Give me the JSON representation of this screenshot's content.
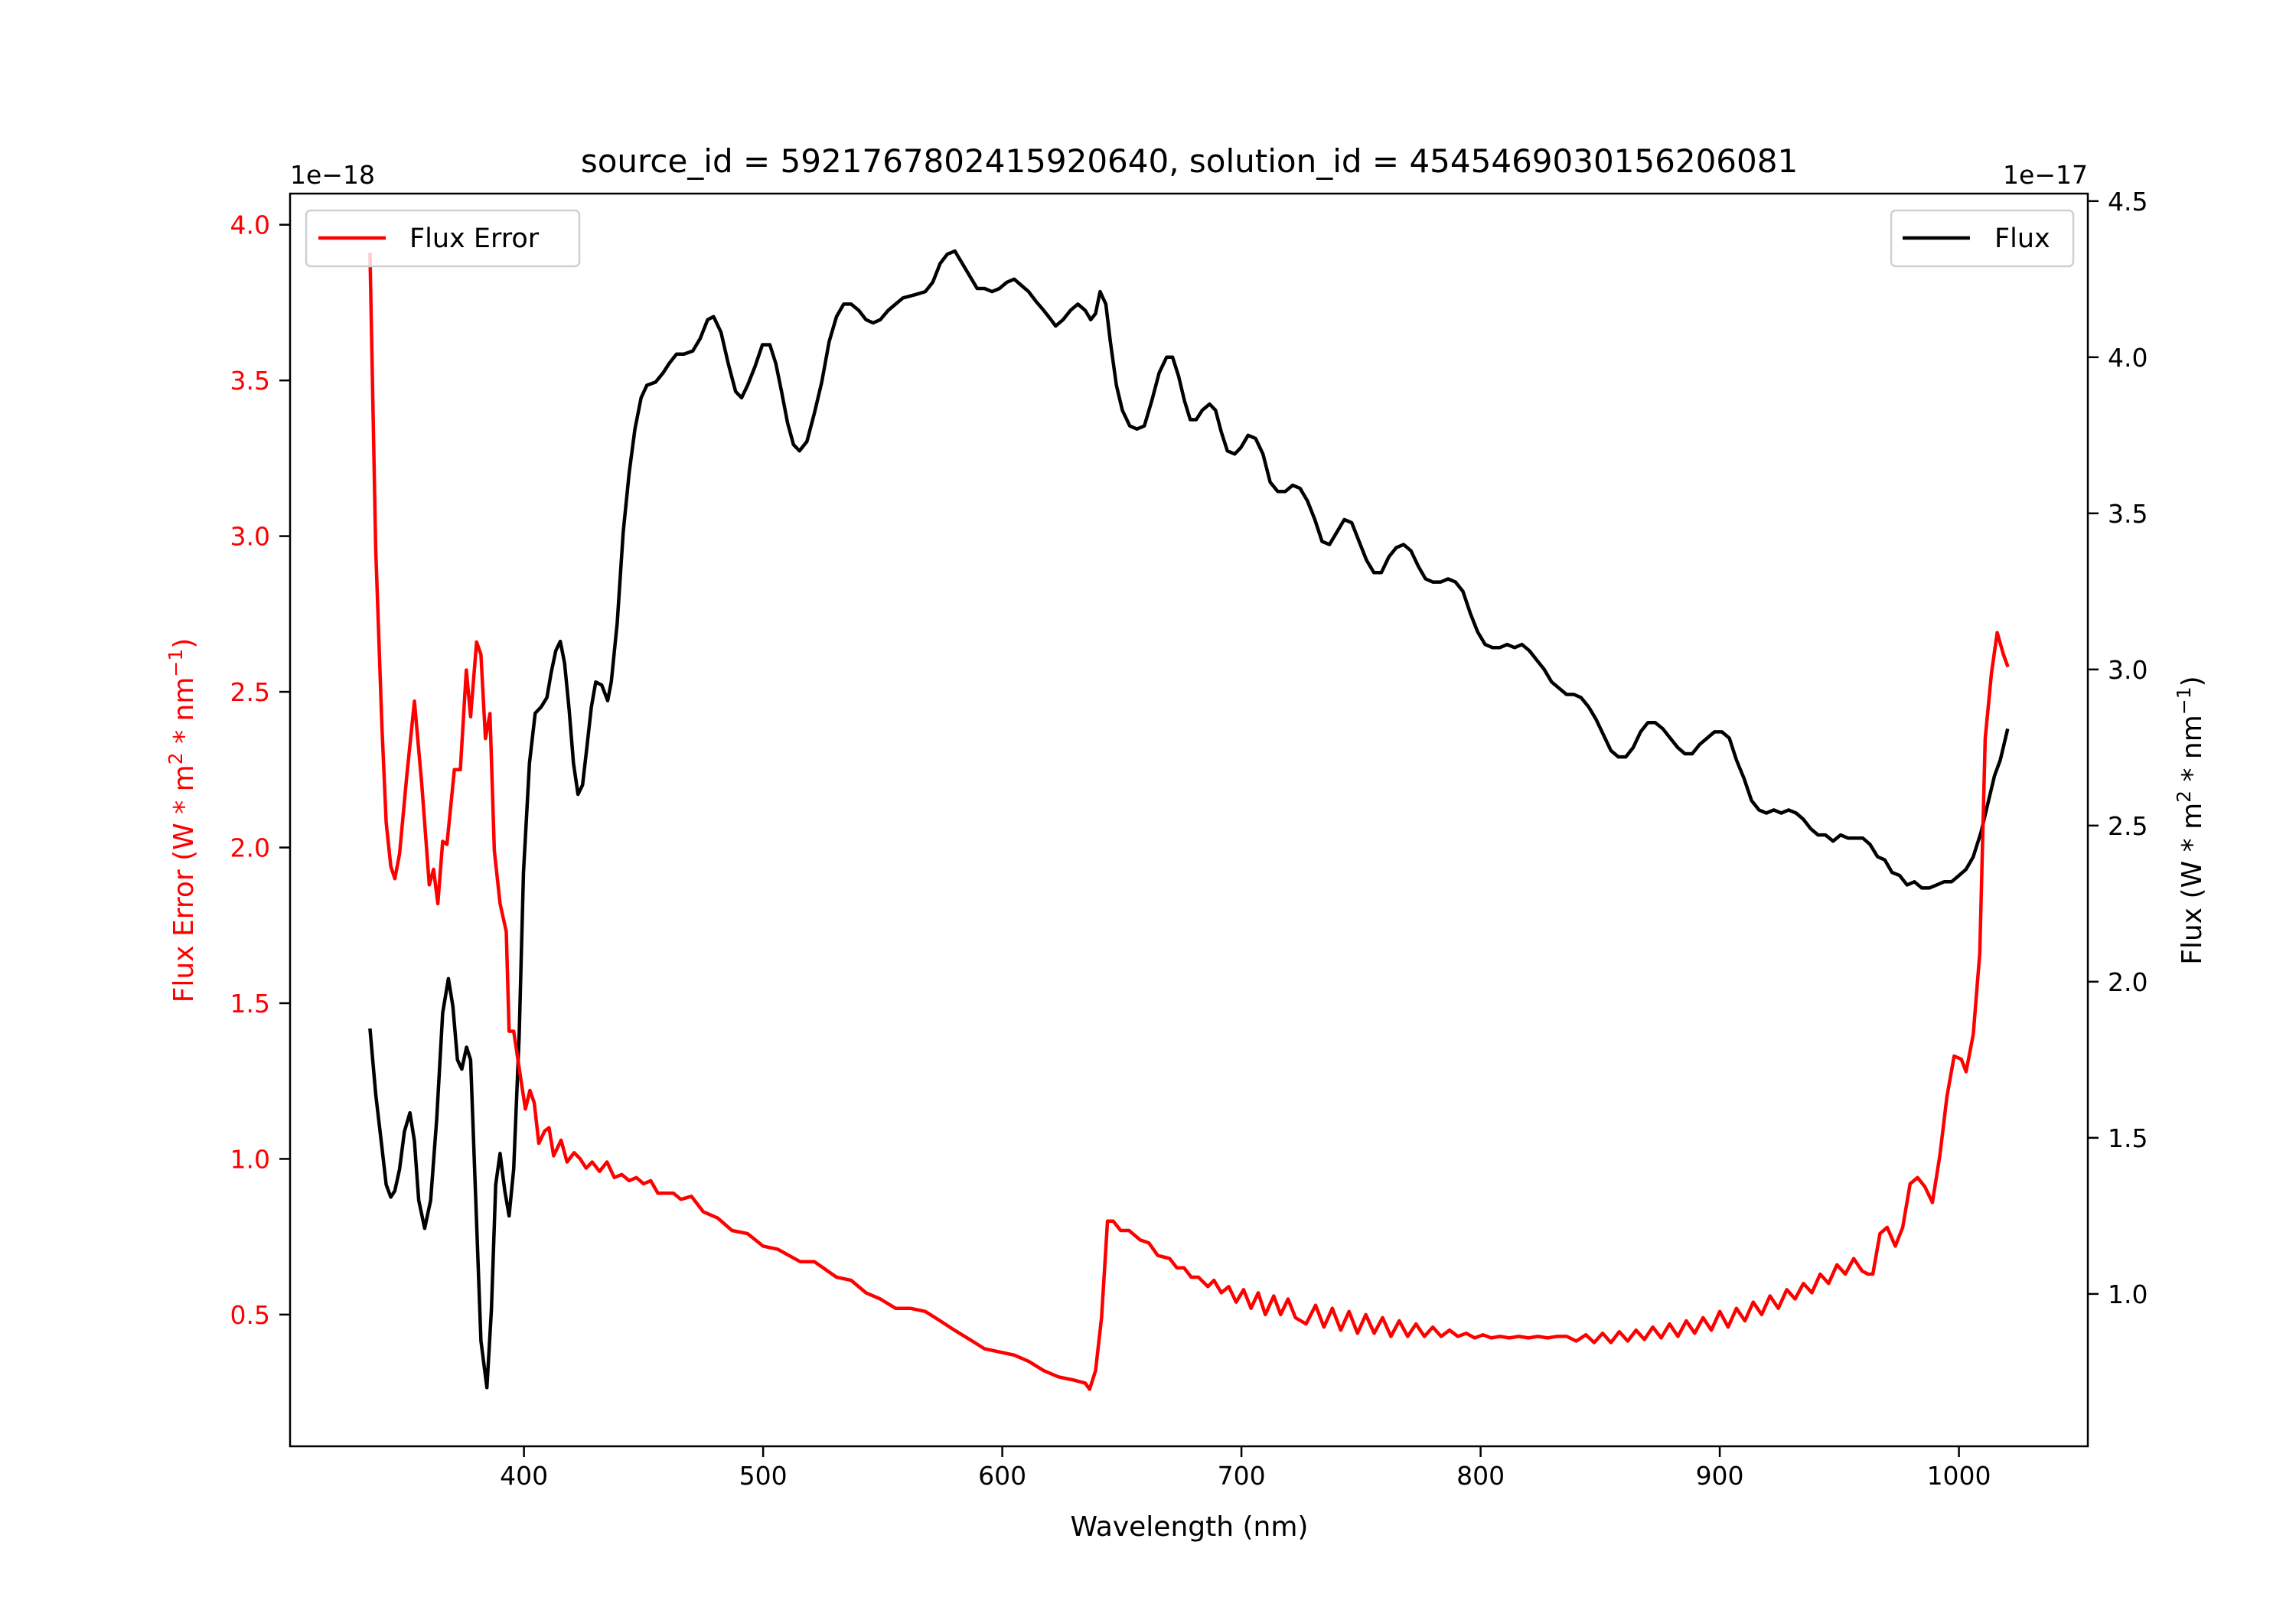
{
  "chart_data": {
    "type": "line",
    "title": "source_id = 5921767802415920640, solution_id = 4545469030156206081",
    "xlabel": "Wavelength (nm)",
    "ylabel_left": {
      "main": "Flux Error (W * m",
      "sup1": "2",
      "mid": " * nm",
      "sup2": "−1",
      "end": ")"
    },
    "ylabel_right": {
      "main": "Flux (W * m",
      "sup1": "2",
      "mid": " * nm",
      "sup2": "−1",
      "end": ")"
    },
    "offset_left": "1e−18",
    "offset_right": "1e−17",
    "xlim": [
      302.2,
      1053.9
    ],
    "ylim_left": [
      0.077,
      4.1
    ],
    "ylim_right": [
      0.512,
      4.524
    ],
    "xticks": [
      400,
      500,
      600,
      700,
      800,
      900,
      1000
    ],
    "xtick_labels": [
      "400",
      "500",
      "600",
      "700",
      "800",
      "900",
      "1000"
    ],
    "yticks_left": [
      0.5,
      1.0,
      1.5,
      2.0,
      2.5,
      3.0,
      3.5,
      4.0
    ],
    "ytick_labels_left": [
      "0.5",
      "1.0",
      "1.5",
      "2.0",
      "2.5",
      "3.0",
      "3.5",
      "4.0"
    ],
    "yticks_right": [
      1.0,
      1.5,
      2.0,
      2.5,
      3.0,
      3.5,
      4.0,
      4.5
    ],
    "ytick_labels_right": [
      "1.0",
      "1.5",
      "2.0",
      "2.5",
      "3.0",
      "3.5",
      "4.0",
      "4.5"
    ],
    "grid": false,
    "legend_left": {
      "label": "Flux Error",
      "placement": "upper-left"
    },
    "legend_right": {
      "label": "Flux",
      "placement": "upper-right"
    },
    "colors": {
      "flux_error": "#ff0000",
      "flux": "#000000",
      "axis": "#000000"
    },
    "series": [
      {
        "name": "Flux Error",
        "axis": "left",
        "x": [
          335.6,
          338,
          340.6,
          342.4,
          344.3,
          346,
          348,
          351,
          354.2,
          357.3,
          360.4,
          362.2,
          364,
          366,
          367.8,
          370.9,
          373.4,
          375.9,
          377.7,
          380.2,
          382,
          383.9,
          385.8,
          387.6,
          390,
          392.6,
          393.8,
          395.7,
          398.8,
          400.6,
          402.5,
          404.3,
          406.2,
          408.7,
          410.5,
          412.4,
          415.5,
          418,
          421,
          423.5,
          426,
          428.5,
          431.6,
          434.7,
          437.8,
          440.9,
          444,
          447,
          450,
          453,
          456,
          462.5,
          465.6,
          470,
          475,
          481,
          487,
          493.5,
          500,
          506,
          515.5,
          521.4,
          530.7,
          536.8,
          543,
          549,
          555.4,
          561.6,
          567.8,
          574,
          580,
          586.4,
          592.6,
          598.8,
          605,
          611,
          617.3,
          623.5,
          629.7,
          634.7,
          636.5,
          639,
          641.5,
          644,
          646.4,
          649.5,
          653,
          657.6,
          661.3,
          665,
          670,
          673,
          676,
          679,
          682,
          686,
          688.5,
          691.6,
          694.7,
          697.8,
          700.9,
          704,
          707,
          710,
          713.5,
          716.4,
          719.5,
          722.6,
          727,
          731,
          734.5,
          738,
          741.5,
          745,
          748.5,
          752,
          755.5,
          759,
          762.5,
          766,
          769.5,
          773,
          776.5,
          780,
          783.5,
          787,
          790.5,
          794,
          797.5,
          801,
          804.5,
          808,
          812,
          816,
          820,
          824,
          828,
          832,
          836,
          840,
          844,
          847.5,
          851,
          854.5,
          858,
          861.5,
          865,
          868.5,
          872,
          875.5,
          879,
          882.5,
          886,
          889.5,
          893,
          896.5,
          900,
          903.5,
          907,
          910.5,
          914,
          917.5,
          921,
          924.5,
          928,
          931.5,
          935,
          938.5,
          942,
          945.5,
          949,
          952.5,
          956,
          959.5,
          962,
          964,
          967,
          970,
          973.4,
          976.5,
          979.6,
          982.7,
          985.8,
          988.9,
          992,
          995,
          998,
          1001,
          1003,
          1006,
          1008.7,
          1011,
          1013.6,
          1016,
          1018.6,
          1020.5
        ],
        "y": [
          3.91,
          2.96,
          2.39,
          2.08,
          1.94,
          1.9,
          1.98,
          2.23,
          2.47,
          2.2,
          1.88,
          1.93,
          1.82,
          2.02,
          2.01,
          2.25,
          2.25,
          2.57,
          2.42,
          2.66,
          2.62,
          2.35,
          2.43,
          1.99,
          1.82,
          1.73,
          1.41,
          1.41,
          1.25,
          1.16,
          1.22,
          1.18,
          1.05,
          1.09,
          1.1,
          1.01,
          1.06,
          0.99,
          1.02,
          1.0,
          0.97,
          0.99,
          0.96,
          0.99,
          0.94,
          0.95,
          0.93,
          0.94,
          0.92,
          0.93,
          0.89,
          0.89,
          0.87,
          0.88,
          0.83,
          0.81,
          0.77,
          0.76,
          0.72,
          0.71,
          0.67,
          0.67,
          0.62,
          0.61,
          0.57,
          0.55,
          0.52,
          0.52,
          0.51,
          0.48,
          0.45,
          0.42,
          0.39,
          0.38,
          0.37,
          0.35,
          0.32,
          0.3,
          0.29,
          0.28,
          0.26,
          0.32,
          0.49,
          0.8,
          0.8,
          0.77,
          0.77,
          0.74,
          0.73,
          0.69,
          0.68,
          0.65,
          0.65,
          0.62,
          0.62,
          0.59,
          0.61,
          0.57,
          0.59,
          0.54,
          0.58,
          0.52,
          0.57,
          0.5,
          0.56,
          0.5,
          0.55,
          0.49,
          0.47,
          0.53,
          0.46,
          0.52,
          0.45,
          0.51,
          0.44,
          0.5,
          0.44,
          0.49,
          0.43,
          0.48,
          0.43,
          0.47,
          0.43,
          0.46,
          0.43,
          0.45,
          0.43,
          0.44,
          0.425,
          0.435,
          0.425,
          0.43,
          0.425,
          0.43,
          0.425,
          0.43,
          0.425,
          0.43,
          0.43,
          0.415,
          0.435,
          0.41,
          0.44,
          0.41,
          0.445,
          0.415,
          0.45,
          0.42,
          0.46,
          0.425,
          0.47,
          0.43,
          0.48,
          0.44,
          0.49,
          0.45,
          0.51,
          0.46,
          0.52,
          0.48,
          0.54,
          0.5,
          0.56,
          0.52,
          0.58,
          0.55,
          0.6,
          0.57,
          0.63,
          0.6,
          0.66,
          0.63,
          0.68,
          0.64,
          0.63,
          0.63,
          0.76,
          0.78,
          0.72,
          0.78,
          0.92,
          0.94,
          0.91,
          0.86,
          1.01,
          1.2,
          1.33,
          1.32,
          1.28,
          1.4,
          1.66,
          2.35,
          2.56,
          2.69,
          2.62,
          2.58
        ]
      },
      {
        "name": "Flux",
        "axis": "right",
        "x": [
          335.6,
          338,
          340.6,
          342.4,
          344.3,
          346,
          348,
          350,
          352.3,
          354.2,
          356,
          358.5,
          361,
          363.5,
          366,
          368.4,
          370.3,
          372.2,
          374,
          376,
          377.7,
          379.6,
          382,
          384.5,
          386.4,
          388.2,
          390,
          392,
          393.8,
          395.7,
          398,
          399.8,
          402.3,
          404.7,
          407.2,
          409.6,
          411.4,
          413.3,
          415.2,
          417,
          418.9,
          420.7,
          422.6,
          424.5,
          426.3,
          428.2,
          430,
          432.5,
          435,
          436.5,
          439,
          441.5,
          444,
          446.4,
          449,
          451.4,
          455,
          458.2,
          460.7,
          463.8,
          466.9,
          470.6,
          473.7,
          476.8,
          479.3,
          482.4,
          485.4,
          488.5,
          491,
          493.5,
          496.6,
          499.7,
          502.8,
          505.3,
          507.7,
          510.2,
          512.7,
          515.2,
          518.3,
          521.4,
          524.5,
          527.6,
          530.7,
          533.7,
          536.8,
          540,
          543,
          546,
          549,
          552.3,
          555.4,
          558.5,
          563.5,
          567.8,
          570.9,
          574,
          577,
          580.2,
          583.3,
          586.4,
          589.5,
          592.6,
          595.7,
          598.8,
          601.9,
          605,
          608,
          611,
          614,
          617.3,
          620.4,
          622.3,
          625.4,
          628.5,
          631.6,
          634.7,
          637,
          639,
          640.9,
          643.3,
          645.2,
          647.7,
          650.2,
          653.3,
          656.3,
          659.4,
          662.5,
          665.6,
          668.7,
          671.2,
          673.7,
          676.2,
          678.6,
          681.1,
          683.6,
          686.7,
          689.2,
          691.6,
          694.1,
          697.2,
          699.7,
          702.8,
          705.9,
          709,
          712,
          715.2,
          718.3,
          721.4,
          724.5,
          727.6,
          730.7,
          733.7,
          736.8,
          739.9,
          743,
          746.1,
          749.2,
          752.3,
          755.4,
          758.5,
          761.6,
          764.7,
          767.8,
          770.9,
          774,
          777,
          780,
          783.3,
          786.4,
          789.5,
          792.6,
          795.7,
          798.8,
          801.9,
          805,
          808,
          811.1,
          814.2,
          817.3,
          820.4,
          823.5,
          826.6,
          829.7,
          832.8,
          835.9,
          839,
          842,
          845.2,
          848.3,
          851.4,
          854.5,
          857.6,
          860.7,
          863.8,
          866.9,
          870,
          873,
          876.2,
          879.3,
          882.4,
          885.4,
          888.5,
          891.6,
          894.7,
          897.8,
          900.9,
          904,
          907,
          910.2,
          913.3,
          916.4,
          919.5,
          922.6,
          925.7,
          928.8,
          931.9,
          935,
          938,
          941.1,
          944.2,
          947.4,
          950.5,
          953.6,
          956.7,
          959.8,
          962.8,
          966,
          969,
          972,
          975.2,
          978.3,
          981.4,
          984.5,
          987.6,
          990.7,
          993.8,
          996.9,
          1000,
          1003,
          1006,
          1009.3,
          1012.4,
          1014.9,
          1017.3,
          1020.4
        ],
        "y": [
          1.85,
          1.64,
          1.47,
          1.35,
          1.31,
          1.33,
          1.4,
          1.52,
          1.58,
          1.49,
          1.3,
          1.21,
          1.3,
          1.56,
          1.9,
          2.01,
          1.92,
          1.75,
          1.72,
          1.79,
          1.75,
          1.35,
          0.85,
          0.7,
          0.95,
          1.35,
          1.45,
          1.33,
          1.25,
          1.4,
          1.83,
          2.35,
          2.7,
          2.86,
          2.88,
          2.91,
          2.99,
          3.06,
          3.09,
          3.02,
          2.87,
          2.7,
          2.6,
          2.63,
          2.75,
          2.88,
          2.96,
          2.95,
          2.9,
          2.96,
          3.15,
          3.44,
          3.63,
          3.77,
          3.87,
          3.91,
          3.92,
          3.95,
          3.98,
          4.01,
          4.01,
          4.02,
          4.06,
          4.12,
          4.13,
          4.08,
          3.98,
          3.89,
          3.87,
          3.91,
          3.97,
          4.04,
          4.04,
          3.98,
          3.89,
          3.79,
          3.72,
          3.7,
          3.73,
          3.82,
          3.92,
          4.05,
          4.13,
          4.17,
          4.17,
          4.15,
          4.12,
          4.11,
          4.12,
          4.15,
          4.17,
          4.19,
          4.2,
          4.21,
          4.24,
          4.3,
          4.33,
          4.34,
          4.3,
          4.26,
          4.22,
          4.22,
          4.21,
          4.22,
          4.24,
          4.25,
          4.23,
          4.21,
          4.18,
          4.15,
          4.12,
          4.1,
          4.12,
          4.15,
          4.17,
          4.15,
          4.12,
          4.14,
          4.21,
          4.17,
          4.05,
          3.91,
          3.83,
          3.78,
          3.77,
          3.78,
          3.86,
          3.95,
          4.0,
          4.0,
          3.94,
          3.86,
          3.8,
          3.8,
          3.83,
          3.85,
          3.83,
          3.76,
          3.7,
          3.69,
          3.71,
          3.75,
          3.74,
          3.69,
          3.6,
          3.57,
          3.57,
          3.59,
          3.58,
          3.54,
          3.48,
          3.41,
          3.4,
          3.44,
          3.48,
          3.47,
          3.41,
          3.35,
          3.31,
          3.31,
          3.36,
          3.39,
          3.4,
          3.38,
          3.33,
          3.29,
          3.28,
          3.28,
          3.29,
          3.28,
          3.25,
          3.18,
          3.12,
          3.08,
          3.07,
          3.07,
          3.08,
          3.07,
          3.08,
          3.06,
          3.03,
          3.0,
          2.96,
          2.94,
          2.92,
          2.92,
          2.91,
          2.88,
          2.84,
          2.79,
          2.74,
          2.72,
          2.72,
          2.75,
          2.8,
          2.83,
          2.83,
          2.81,
          2.78,
          2.75,
          2.73,
          2.73,
          2.76,
          2.78,
          2.8,
          2.8,
          2.78,
          2.71,
          2.65,
          2.58,
          2.55,
          2.54,
          2.55,
          2.54,
          2.55,
          2.54,
          2.52,
          2.49,
          2.47,
          2.47,
          2.45,
          2.47,
          2.46,
          2.46,
          2.46,
          2.44,
          2.4,
          2.39,
          2.35,
          2.34,
          2.31,
          2.32,
          2.3,
          2.3,
          2.31,
          2.32,
          2.32,
          2.34,
          2.36,
          2.4,
          2.48,
          2.58,
          2.66,
          2.71,
          2.81
        ]
      }
    ]
  }
}
